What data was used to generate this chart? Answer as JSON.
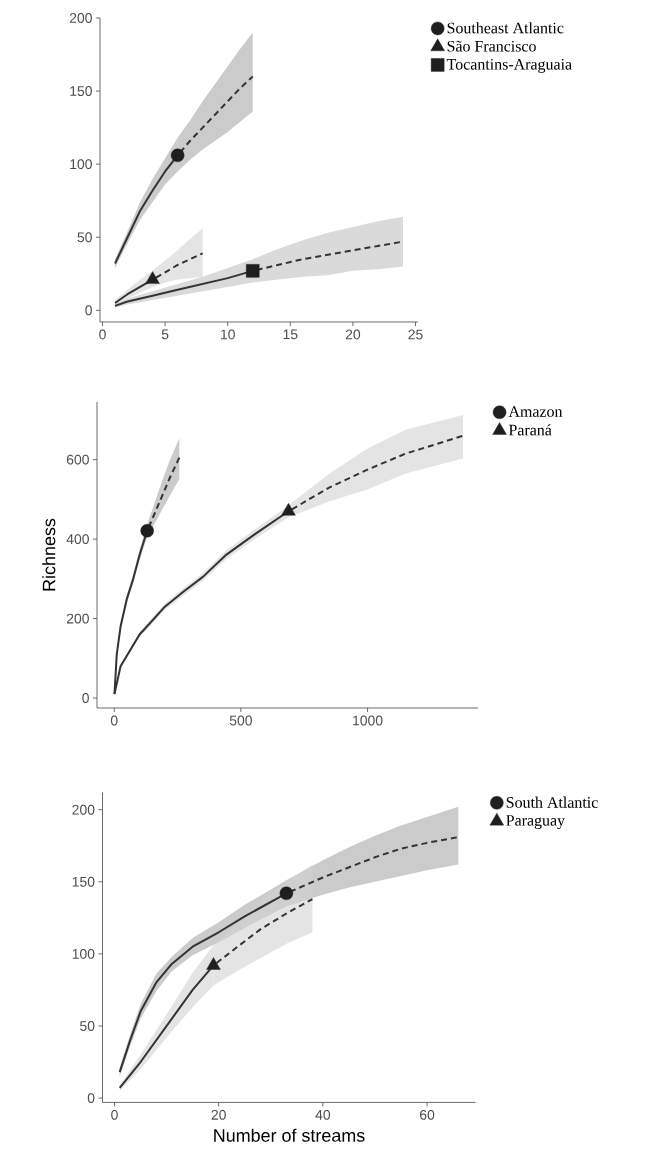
{
  "chart_data": [
    {
      "type": "line",
      "xlim": [
        -0.2,
        25.2
      ],
      "ylim": [
        -8,
        200
      ],
      "xticks": [
        0,
        5,
        10,
        15,
        20,
        25
      ],
      "yticks": [
        0,
        50,
        100,
        150,
        200
      ],
      "legend": "right",
      "series": [
        {
          "line_style": "solid",
          "color": "#333333",
          "x": [
            1,
            2,
            3,
            4,
            5,
            6
          ],
          "values": [
            32,
            50,
            68,
            82,
            95,
            106
          ],
          "lower": [
            29,
            46,
            62,
            74,
            86,
            95
          ],
          "upper": [
            35,
            54,
            74,
            90,
            104,
            118
          ]
        },
        {
          "line_style": "dashed",
          "color": "#333333",
          "x": [
            6,
            7,
            8,
            9,
            10,
            11,
            12
          ],
          "values": [
            106,
            116,
            125,
            134,
            143,
            152,
            160
          ],
          "lower": [
            95,
            103,
            110,
            116,
            122,
            129,
            136
          ],
          "upper": [
            118,
            130,
            143,
            155,
            167,
            179,
            190
          ]
        },
        {
          "type": "scatter",
          "name": "Southeast Atlantic",
          "marker": "circle",
          "color": "#1f1f1f",
          "x": [
            6
          ],
          "values": [
            106
          ]
        },
        {
          "line_style": "solid",
          "color": "#333333",
          "x": [
            1,
            2,
            3,
            4
          ],
          "values": [
            5,
            11,
            16,
            21
          ],
          "lower": [
            3,
            8,
            12,
            16
          ],
          "upper": [
            7,
            14,
            21,
            27
          ]
        },
        {
          "line_style": "dashed",
          "color": "#333333",
          "x": [
            4,
            5,
            6,
            7,
            8
          ],
          "values": [
            21,
            26,
            31,
            35,
            39
          ],
          "lower": [
            16,
            19,
            21,
            22,
            23
          ],
          "upper": [
            27,
            34,
            41,
            49,
            56
          ]
        },
        {
          "type": "scatter",
          "name": "São Francisco",
          "marker": "triangle",
          "color": "#1f1f1f",
          "x": [
            4
          ],
          "values": [
            21
          ]
        },
        {
          "line_style": "solid",
          "color": "#333333",
          "x": [
            1,
            2,
            4,
            6,
            8,
            10,
            12
          ],
          "values": [
            3,
            6,
            10,
            14,
            18,
            22,
            27
          ],
          "lower": [
            2,
            4,
            7,
            10,
            13,
            16,
            19
          ],
          "upper": [
            4,
            8,
            13,
            18,
            23,
            29,
            35
          ]
        },
        {
          "line_style": "dashed",
          "color": "#333333",
          "x": [
            12,
            14,
            16,
            18,
            20,
            22,
            24
          ],
          "values": [
            27,
            31,
            35,
            38,
            41,
            44,
            47
          ],
          "lower": [
            19,
            21,
            23,
            24,
            27,
            28,
            30
          ],
          "upper": [
            35,
            42,
            48,
            53,
            57,
            61,
            64
          ]
        },
        {
          "type": "scatter",
          "name": "Tocantins-Araguaia",
          "marker": "square",
          "color": "#1f1f1f",
          "x": [
            12
          ],
          "values": [
            27
          ]
        }
      ]
    },
    {
      "type": "line",
      "ylabel": "Richness",
      "xlim": [
        -68,
        1436
      ],
      "ylim": [
        -25,
        745
      ],
      "xticks": [
        0,
        500,
        1000
      ],
      "yticks": [
        0,
        200,
        400,
        600
      ],
      "legend": "right",
      "series": [
        {
          "line_style": "solid",
          "color": "#333333",
          "x": [
            1,
            10,
            25,
            50,
            75,
            100,
            130
          ],
          "values": [
            10,
            110,
            180,
            250,
            300,
            360,
            421
          ],
          "lower": [
            8,
            104,
            172,
            240,
            289,
            347,
            405
          ],
          "upper": [
            12,
            116,
            188,
            260,
            311,
            373,
            437
          ]
        },
        {
          "line_style": "dashed",
          "color": "#333333",
          "x": [
            130,
            160,
            190,
            220,
            257
          ],
          "values": [
            421,
            465,
            510,
            555,
            605
          ],
          "lower": [
            405,
            440,
            475,
            510,
            551
          ],
          "upper": [
            437,
            492,
            548,
            600,
            654
          ]
        },
        {
          "type": "scatter",
          "name": "Amazon",
          "marker": "circle",
          "color": "#1f1f1f",
          "x": [
            130
          ],
          "values": [
            421
          ]
        },
        {
          "line_style": "solid",
          "color": "#333333",
          "x": [
            1,
            25,
            54,
            100,
            139,
            200,
            274,
            350,
            443,
            550,
            688
          ],
          "values": [
            10,
            80,
            111,
            160,
            187,
            230,
            268,
            305,
            361,
            410,
            470
          ],
          "lower": [
            8,
            76,
            106,
            154,
            180,
            222,
            259,
            295,
            350,
            398,
            455
          ],
          "upper": [
            12,
            84,
            116,
            166,
            194,
            238,
            277,
            315,
            372,
            422,
            485
          ]
        },
        {
          "line_style": "dashed",
          "color": "#333333",
          "x": [
            688,
            850,
            1000,
            1150,
            1377
          ],
          "values": [
            470,
            530,
            575,
            615,
            660
          ],
          "lower": [
            455,
            495,
            525,
            565,
            603
          ],
          "upper": [
            485,
            565,
            628,
            675,
            712
          ]
        },
        {
          "type": "scatter",
          "name": "Paraná",
          "marker": "triangle",
          "color": "#1f1f1f",
          "x": [
            688
          ],
          "values": [
            470
          ]
        }
      ]
    },
    {
      "type": "line",
      "xlabel": "Number of streams",
      "xlim": [
        -2.3,
        69.3
      ],
      "ylim": [
        -3,
        212
      ],
      "xticks": [
        0,
        20,
        40,
        60
      ],
      "yticks": [
        0,
        50,
        100,
        150,
        200
      ],
      "legend": "right",
      "series": [
        {
          "line_style": "solid",
          "color": "#333333",
          "x": [
            1,
            3,
            5,
            8,
            11,
            15,
            20,
            25,
            33
          ],
          "values": [
            18,
            40,
            60,
            80,
            93,
            105,
            115,
            126,
            142
          ],
          "lower": [
            15,
            36,
            55,
            74,
            88,
            99,
            108,
            118,
            133
          ],
          "upper": [
            21,
            44,
            65,
            86,
            98,
            111,
            122,
            134,
            151
          ]
        },
        {
          "line_style": "dashed",
          "color": "#333333",
          "x": [
            33,
            40,
            45,
            50,
            55,
            60,
            66
          ],
          "values": [
            142,
            153,
            160,
            167,
            173,
            177,
            181
          ],
          "lower": [
            133,
            141,
            146,
            150,
            154,
            158,
            162
          ],
          "upper": [
            151,
            165,
            174,
            182,
            189,
            195,
            202
          ]
        },
        {
          "type": "scatter",
          "name": "South Atlantic",
          "marker": "circle",
          "color": "#1f1f1f",
          "x": [
            33
          ],
          "values": [
            142
          ]
        },
        {
          "line_style": "solid",
          "color": "#333333",
          "x": [
            1,
            5,
            10,
            15,
            19
          ],
          "values": [
            7,
            25,
            50,
            75,
            92
          ],
          "lower": [
            5,
            20,
            42,
            63,
            78
          ],
          "upper": [
            9,
            30,
            58,
            87,
            106
          ]
        },
        {
          "line_style": "dashed",
          "color": "#333333",
          "x": [
            19,
            24,
            28,
            33,
            38
          ],
          "values": [
            92,
            106,
            117,
            128,
            138
          ],
          "lower": [
            78,
            89,
            97,
            107,
            115
          ],
          "upper": [
            106,
            122,
            136,
            150,
            162
          ]
        },
        {
          "type": "scatter",
          "name": "Paraguay",
          "marker": "triangle",
          "color": "#1f1f1f",
          "x": [
            19
          ],
          "values": [
            92
          ]
        }
      ]
    }
  ]
}
